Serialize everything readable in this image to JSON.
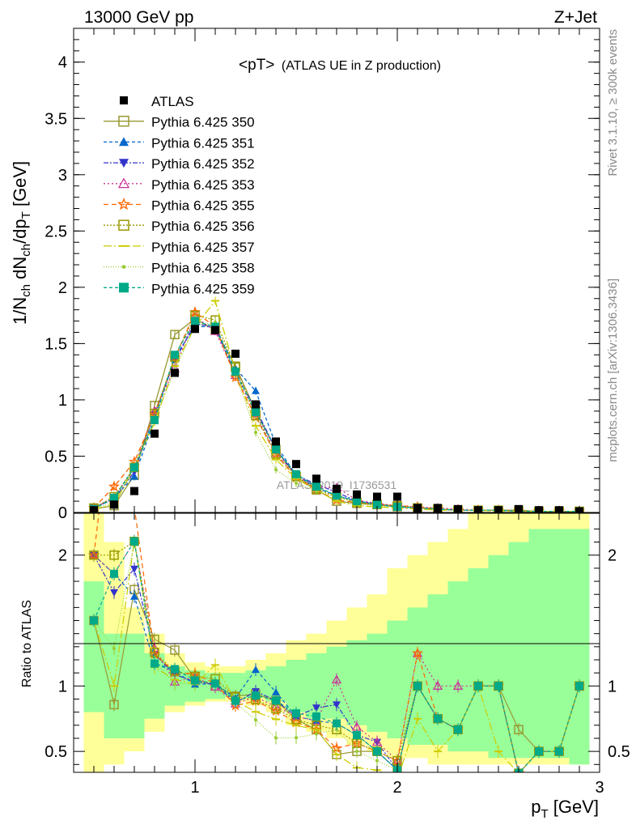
{
  "header": {
    "left": "13000 GeV pp",
    "right": "Z+Jet"
  },
  "side_labels": {
    "rivet": "Rivet 3.1.10, ≥ 300k events",
    "mcplots": "mcplots.cern.ch [arXiv:1306.3436]"
  },
  "chart_data": {
    "type": "line",
    "title": "<pT> (ATLAS UE in Z production)",
    "title_main": "<pT>",
    "title_sub": "(ATLAS UE in Z production)",
    "watermark": "ATLAS_2019_I1736531",
    "xlabel": "p",
    "xlabel_sub": "T",
    "xlabel_unit": "[GeV]",
    "ylabel": "1/N_ch dN_ch/dp_T [GeV]",
    "ratio_ylabel": "Ratio to ATLAS",
    "xlim": [
      0.4,
      3.0
    ],
    "ylim": [
      0,
      4.3
    ],
    "ratio_ylim": [
      0.34,
      2.32
    ],
    "x_ticks": [
      "1",
      "2",
      "3"
    ],
    "y_ticks": [
      "0",
      "0.5",
      "1",
      "1.5",
      "2",
      "2.5",
      "3",
      "3.5",
      "4"
    ],
    "ratio_ticks": [
      "0.5",
      "1",
      "2"
    ],
    "legend_position": "top-left",
    "colors": {
      "band_outer": "#ffff99",
      "band_inner": "#99ff99"
    },
    "x": [
      0.5,
      0.6,
      0.7,
      0.8,
      0.9,
      1.0,
      1.1,
      1.2,
      1.3,
      1.4,
      1.5,
      1.6,
      1.7,
      1.8,
      1.9,
      2.0,
      2.1,
      2.2,
      2.3,
      2.4,
      2.5,
      2.6,
      2.7,
      2.8,
      2.9
    ],
    "data": {
      "name": "ATLAS",
      "values": [
        0.02,
        0.07,
        0.19,
        0.7,
        1.24,
        1.63,
        1.62,
        1.41,
        0.96,
        0.63,
        0.43,
        0.3,
        0.21,
        0.16,
        0.14,
        0.14,
        0.04,
        0.04,
        0.03,
        0.02,
        0.02,
        0.03,
        0.02,
        0.02,
        0.01
      ]
    },
    "band": {
      "inner": [
        0.8,
        0.6,
        0.6,
        0.75,
        0.85,
        0.88,
        0.9,
        0.92,
        0.91,
        0.88,
        0.8,
        0.75,
        0.75,
        0.7,
        0.65,
        0.6,
        0.55,
        0.55,
        0.5,
        0.5,
        0.45,
        0.45,
        0.45,
        0.45,
        0.4
      ],
      "inner_hi": [
        1.8,
        1.4,
        1.4,
        1.25,
        1.15,
        1.12,
        1.1,
        1.1,
        1.12,
        1.15,
        1.2,
        1.25,
        1.3,
        1.35,
        1.4,
        1.5,
        1.6,
        1.7,
        1.8,
        1.9,
        2.0,
        2.1,
        2.2,
        2.2,
        2.2
      ],
      "outer": [
        0.34,
        0.4,
        0.5,
        0.65,
        0.8,
        0.85,
        0.88,
        0.88,
        0.85,
        0.8,
        0.7,
        0.65,
        0.6,
        0.55,
        0.5,
        0.45,
        0.45,
        0.4,
        0.4,
        0.4,
        0.4,
        0.4,
        0.4,
        0.4,
        0.4
      ],
      "outer_hi": [
        2.32,
        2.1,
        1.6,
        1.4,
        1.25,
        1.18,
        1.15,
        1.15,
        1.2,
        1.25,
        1.35,
        1.4,
        1.5,
        1.6,
        1.7,
        1.9,
        2.0,
        2.1,
        2.2,
        2.32,
        2.32,
        2.32,
        2.32,
        2.32,
        2.32
      ]
    },
    "series": [
      {
        "name": "Pythia 6.425 350",
        "color": "#999933",
        "marker": "square-open",
        "dash": "",
        "values": [
          0.03,
          0.06,
          0.33,
          0.95,
          1.58,
          1.72,
          1.62,
          1.3,
          0.9,
          0.56,
          0.32,
          0.2,
          0.1,
          0.08,
          0.07,
          0.05,
          0.04,
          0.03,
          0.02,
          0.02,
          0.02,
          0.02,
          0.01,
          0.01,
          0.01
        ]
      },
      {
        "name": "Pythia 6.425 351",
        "color": "#0066cc",
        "marker": "triangle-up",
        "dash": "4,3",
        "values": [
          0.04,
          0.13,
          0.32,
          0.82,
          1.38,
          1.65,
          1.65,
          1.28,
          1.08,
          0.6,
          0.33,
          0.22,
          0.15,
          0.1,
          0.07,
          0.05,
          0.04,
          0.03,
          0.02,
          0.02,
          0.02,
          0.01,
          0.01,
          0.01,
          0.01
        ]
      },
      {
        "name": "Pythia 6.425 352",
        "color": "#3333cc",
        "marker": "triangle-down",
        "dash": "6,2,2,2",
        "values": [
          0.04,
          0.12,
          0.36,
          0.87,
          1.35,
          1.68,
          1.64,
          1.23,
          0.92,
          0.56,
          0.33,
          0.25,
          0.18,
          0.1,
          0.08,
          0.05,
          0.04,
          0.03,
          0.02,
          0.02,
          0.02,
          0.01,
          0.01,
          0.01,
          0.01
        ]
      },
      {
        "name": "Pythia 6.425 353",
        "color": "#cc3399",
        "marker": "triangle-open",
        "dash": "2,3",
        "values": [
          0.04,
          0.13,
          0.4,
          0.9,
          1.28,
          1.74,
          1.61,
          1.22,
          0.88,
          0.53,
          0.33,
          0.22,
          0.22,
          0.11,
          0.08,
          0.06,
          0.05,
          0.04,
          0.03,
          0.02,
          0.02,
          0.01,
          0.01,
          0.01,
          0.01
        ]
      },
      {
        "name": "Pythia 6.425 355",
        "color": "#ff6600",
        "marker": "star-open",
        "dash": "6,4",
        "values": [
          0.04,
          0.23,
          0.45,
          0.87,
          1.37,
          1.78,
          1.65,
          1.2,
          0.85,
          0.51,
          0.31,
          0.2,
          0.11,
          0.09,
          0.07,
          0.06,
          0.05,
          0.03,
          0.02,
          0.02,
          0.02,
          0.01,
          0.01,
          0.01,
          0.01
        ]
      },
      {
        "name": "Pythia 6.425 356",
        "color": "#999900",
        "marker": "square-open",
        "dash": "2,2",
        "values": [
          0.04,
          0.14,
          0.4,
          0.88,
          1.38,
          1.75,
          1.71,
          1.29,
          0.86,
          0.52,
          0.32,
          0.21,
          0.14,
          0.09,
          0.07,
          0.06,
          0.04,
          0.03,
          0.02,
          0.02,
          0.02,
          0.01,
          0.01,
          0.01,
          0.01
        ]
      },
      {
        "name": "Pythia 6.425 357",
        "color": "#cccc00",
        "marker": "dash",
        "dash": "10,3,2,3",
        "values": [
          0.03,
          0.07,
          0.4,
          0.8,
          1.3,
          1.65,
          1.88,
          1.25,
          0.77,
          0.47,
          0.3,
          0.2,
          0.1,
          0.06,
          0.05,
          0.04,
          0.03,
          0.02,
          0.02,
          0.02,
          0.01,
          0.01,
          0.01,
          0.01,
          0.01
        ]
      },
      {
        "name": "Pythia 6.425 358",
        "color": "#99cc33",
        "marker": "dot",
        "dash": "1,2",
        "values": [
          0.03,
          0.09,
          0.4,
          0.83,
          1.26,
          1.66,
          1.69,
          1.23,
          0.71,
          0.38,
          0.26,
          0.19,
          0.14,
          0.08,
          0.06,
          0.05,
          0.04,
          0.03,
          0.02,
          0.02,
          0.02,
          0.01,
          0.01,
          0.01,
          0.01
        ]
      },
      {
        "name": "Pythia 6.425 359",
        "color": "#00aa88",
        "marker": "square",
        "dash": "4,3",
        "values": [
          0.03,
          0.13,
          0.4,
          0.82,
          1.4,
          1.7,
          1.65,
          1.25,
          0.89,
          0.56,
          0.34,
          0.23,
          0.15,
          0.1,
          0.07,
          0.05,
          0.04,
          0.03,
          0.02,
          0.02,
          0.02,
          0.01,
          0.01,
          0.01,
          0.01
        ]
      }
    ]
  }
}
